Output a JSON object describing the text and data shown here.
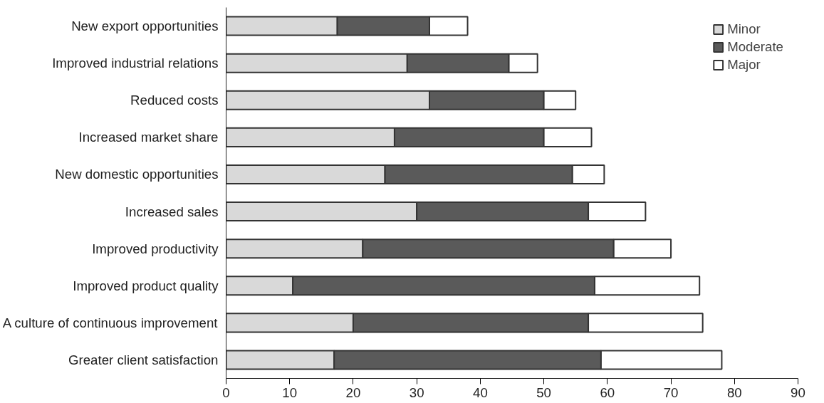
{
  "chart_data": {
    "type": "bar",
    "orientation": "horizontal",
    "stacked": true,
    "categories": [
      "New export opportunities",
      "Improved industrial relations",
      "Reduced costs",
      "Increased market share",
      "New domestic opportunities",
      "Increased sales",
      "Improved productivity",
      "Improved product quality",
      "A culture of continuous improvement",
      "Greater client satisfaction"
    ],
    "series": [
      {
        "name": "Minor",
        "color": "#d9d9d9",
        "values": [
          17.5,
          28.5,
          32,
          26.5,
          25,
          30,
          21.5,
          10.5,
          20,
          17
        ]
      },
      {
        "name": "Moderate",
        "color": "#5a5a5a",
        "values": [
          14.5,
          16,
          18,
          23.5,
          29.5,
          27,
          39.5,
          47.5,
          37,
          42
        ]
      },
      {
        "name": "Major",
        "color": "#ffffff",
        "values": [
          6,
          4.5,
          5,
          7.5,
          5,
          9,
          9,
          16.5,
          18,
          19
        ]
      }
    ],
    "xlim": [
      0,
      90
    ],
    "xticks": [
      0,
      10,
      20,
      30,
      40,
      50,
      60,
      70,
      80,
      90
    ],
    "grid": false,
    "legend": "top right"
  }
}
